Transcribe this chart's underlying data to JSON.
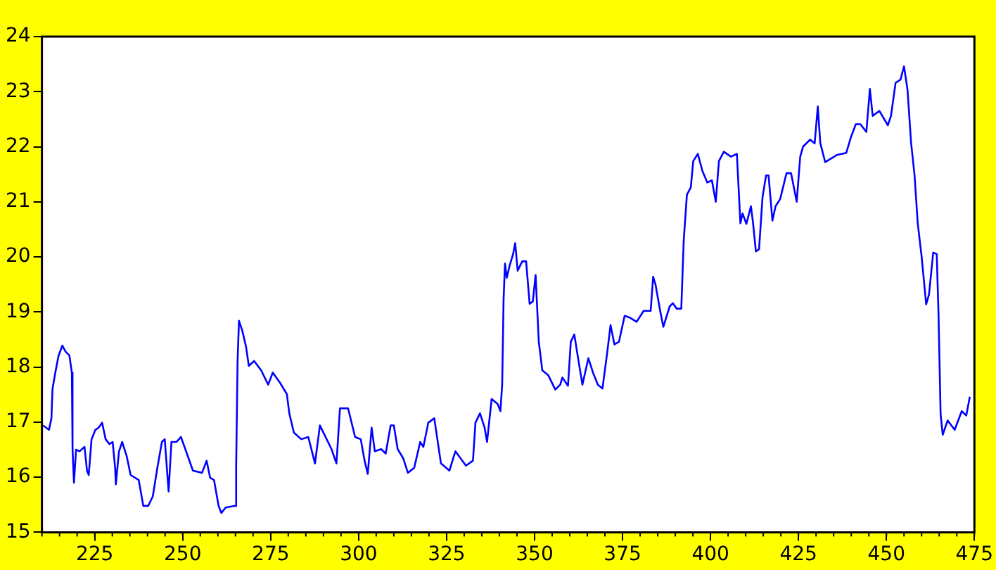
{
  "chart_data": {
    "type": "line",
    "xlim": [
      210,
      475
    ],
    "xticks": [
      225,
      250,
      275,
      300,
      325,
      350,
      375,
      400,
      425,
      450,
      475
    ],
    "ylim": [
      15,
      24
    ],
    "yticks": [
      15,
      16,
      17,
      18,
      19,
      20,
      21,
      22,
      23,
      24
    ],
    "marker": "none",
    "line_style": "solid",
    "series": [
      {
        "color": "#0000ff",
        "x": [
          210.3,
          212,
          212.7,
          213,
          213.8,
          214.7,
          215.8,
          216.7,
          217.8,
          218.5,
          218.7,
          219.1,
          219.7,
          220.7,
          222.1,
          222.8,
          223.3,
          224.1,
          225.2,
          226.1,
          227.1,
          228.1,
          229.2,
          230.1,
          230.8,
          231,
          231.9,
          232.8,
          234.1,
          235.2,
          237.5,
          238.8,
          240.2,
          241.5,
          242.8,
          244.1,
          244.9,
          245.5,
          246,
          246.8,
          248.2,
          249.5,
          250.8,
          252.9,
          255.5,
          256.8,
          257.8,
          258.9,
          260.2,
          261,
          262.2,
          264.9,
          265.2,
          265.6,
          266,
          266.9,
          268,
          268.8,
          270.3,
          272.3,
          274.3,
          275.6,
          277.6,
          279.6,
          280.3,
          281.6,
          283.7,
          285.7,
          287.6,
          289,
          290.3,
          292.3,
          293.7,
          294.7,
          297,
          299,
          300.6,
          301.7,
          302.6,
          303.7,
          304.6,
          306.4,
          307.7,
          309.1,
          310,
          311.1,
          312.7,
          314,
          315.8,
          317.5,
          318.4,
          319.8,
          321.5,
          323.4,
          325.8,
          327.5,
          330.5,
          332.5,
          333.2,
          334.5,
          335.8,
          336.5,
          337.8,
          339.5,
          340.3,
          340.8,
          341.2,
          341.6,
          342.1,
          342.9,
          343.9,
          344.5,
          345.2,
          346.5,
          347.6,
          348.6,
          349.5,
          350.3,
          351.2,
          352.2,
          353.9,
          355.9,
          357.3,
          357.9,
          359.5,
          360.3,
          361.3,
          362.6,
          363.6,
          365.3,
          366.6,
          368,
          369.3,
          370.6,
          371.6,
          372.7,
          374,
          375.6,
          377,
          379,
          381,
          383,
          383.7,
          384.4,
          385.7,
          386.6,
          388.4,
          389.3,
          390.4,
          391.7,
          392.4,
          393.3,
          394.4,
          395.1,
          396.4,
          397.7,
          399.1,
          400.4,
          401.5,
          402.4,
          403.8,
          405.8,
          407.5,
          408.5,
          409.1,
          410.2,
          411.5,
          412.1,
          412.9,
          413.8,
          414.8,
          415.8,
          416.5,
          417.6,
          418.5,
          419.8,
          421.6,
          422.9,
          424.5,
          425.5,
          426.3,
          428.3,
          429.6,
          430.5,
          431.2,
          432.6,
          435.9,
          438.6,
          439.9,
          441.3,
          442.6,
          444.3,
          445.3,
          446.1,
          448,
          450.4,
          451.3,
          452.6,
          454,
          455,
          456,
          457,
          458,
          458.9,
          460,
          461.3,
          462.1,
          463.3,
          464.3,
          464.8,
          465.4,
          466,
          467.4,
          469.4,
          471.4,
          472.7,
          473.7
        ],
        "values": [
          16.94,
          16.86,
          17.07,
          17.6,
          17.9,
          18.2,
          18.39,
          18.28,
          18.21,
          17.9,
          16.5,
          15.9,
          16.5,
          16.47,
          16.55,
          16.12,
          16.04,
          16.69,
          16.86,
          16.9,
          16.99,
          16.69,
          16.6,
          16.64,
          16.17,
          15.87,
          16.47,
          16.64,
          16.38,
          16.04,
          15.95,
          15.48,
          15.48,
          15.65,
          16.17,
          16.64,
          16.69,
          16.17,
          15.74,
          16.64,
          16.64,
          16.73,
          16.5,
          16.12,
          16.08,
          16.3,
          15.99,
          15.95,
          15.48,
          15.35,
          15.45,
          15.48,
          16.21,
          18.11,
          18.84,
          18.67,
          18.37,
          18.02,
          18.11,
          17.94,
          17.68,
          17.9,
          17.72,
          17.51,
          17.16,
          16.81,
          16.69,
          16.73,
          16.25,
          16.94,
          16.77,
          16.51,
          16.25,
          17.25,
          17.25,
          16.73,
          16.69,
          16.3,
          16.06,
          16.9,
          16.47,
          16.51,
          16.43,
          16.94,
          16.94,
          16.51,
          16.34,
          16.08,
          16.17,
          16.64,
          16.55,
          16.99,
          17.07,
          16.25,
          16.12,
          16.47,
          16.21,
          16.3,
          16.99,
          17.16,
          16.9,
          16.64,
          17.42,
          17.33,
          17.2,
          17.68,
          19.23,
          19.88,
          19.62,
          19.84,
          20.05,
          20.25,
          19.75,
          19.92,
          19.92,
          19.15,
          19.19,
          19.67,
          18.46,
          17.94,
          17.85,
          17.59,
          17.68,
          17.81,
          17.66,
          18.46,
          18.59,
          18.07,
          17.68,
          18.16,
          17.9,
          17.68,
          17.61,
          18.24,
          18.76,
          18.41,
          18.46,
          18.93,
          18.9,
          18.82,
          19.02,
          19.02,
          19.64,
          19.49,
          19.02,
          18.73,
          19.1,
          19.16,
          19.06,
          19.06,
          20.31,
          21.13,
          21.26,
          21.74,
          21.87,
          21.56,
          21.35,
          21.39,
          21,
          21.74,
          21.91,
          21.82,
          21.87,
          20.61,
          20.79,
          20.6,
          20.92,
          20.61,
          20.1,
          20.14,
          21.09,
          21.48,
          21.48,
          20.66,
          20.92,
          21.05,
          21.52,
          21.52,
          21,
          21.82,
          22,
          22.13,
          22.06,
          22.73,
          22.07,
          21.72,
          21.85,
          21.89,
          22.17,
          22.41,
          22.41,
          22.27,
          23.05,
          22.56,
          22.65,
          22.39,
          22.56,
          23.16,
          23.22,
          23.46,
          23.03,
          22.08,
          21.48,
          20.61,
          20.01,
          19.14,
          19.32,
          20.08,
          20.05,
          18.97,
          17.14,
          16.77,
          17.03,
          16.86,
          17.2,
          17.12,
          17.46
        ]
      }
    ]
  }
}
